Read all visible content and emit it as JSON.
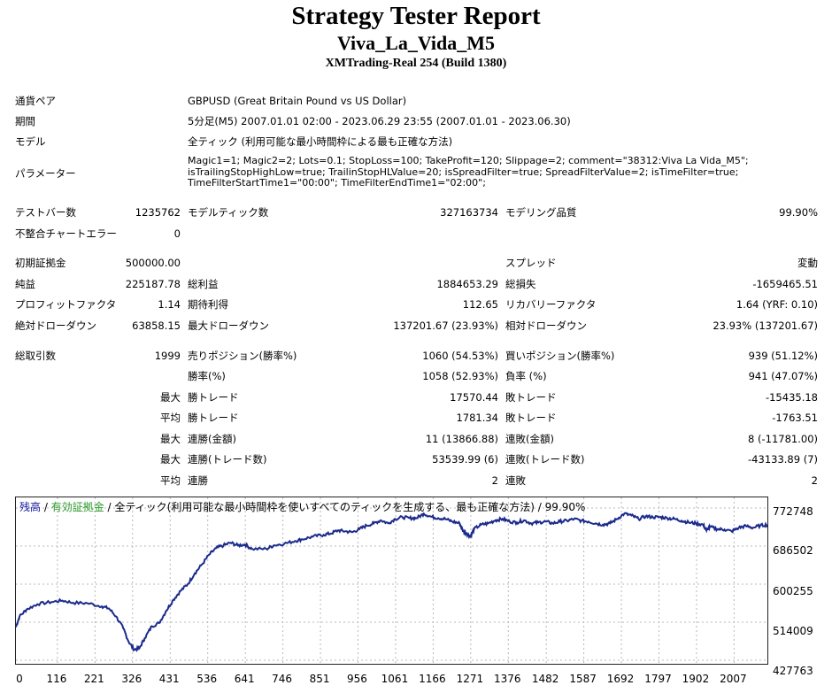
{
  "header": {
    "title": "Strategy Tester Report",
    "subtitle": "Viva_La_Vida_M5",
    "build": "XMTrading-Real 254 (Build 1380)"
  },
  "info": {
    "symbol_label": "通貨ペア",
    "symbol_value": "GBPUSD (Great Britain Pound vs US Dollar)",
    "period_label": "期間",
    "period_value": "5分足(M5) 2007.01.01 02:00 - 2023.06.29 23:55 (2007.01.01 - 2023.06.30)",
    "model_label": "モデル",
    "model_value": "全ティック (利用可能な最小時間枠による最も正確な方法)",
    "params_label": "パラメーター",
    "params_lines": [
      "Magic1=1; Magic2=2; Lots=0.1; StopLoss=100; TakeProfit=120; Slippage=2; comment=\"38312:Viva La Vida_M5\";",
      "isTrailingStopHighLow=true; TrailinStopHLValue=20; isSpreadFilter=true; SpreadFilterValue=2; isTimeFilter=true;",
      "TimeFilterStartTime1=\"00:00\"; TimeFilterEndTime1=\"02:00\";"
    ]
  },
  "stats": {
    "bars_label": "テストバー数",
    "bars_value": "1235762",
    "ticks_label": "モデルティック数",
    "ticks_value": "327163734",
    "quality_label": "モデリング品質",
    "quality_value": "99.90%",
    "errors_label": "不整合チャートエラー",
    "errors_value": "0",
    "deposit_label": "初期証拠金",
    "deposit_value": "500000.00",
    "spread_label": "スプレッド",
    "spread_value": "変動",
    "net_label": "純益",
    "net_value": "225187.78",
    "gross_profit_label": "総利益",
    "gross_profit_value": "1884653.29",
    "gross_loss_label": "総損失",
    "gross_loss_value": "-1659465.51",
    "pf_label": "プロフィットファクタ",
    "pf_value": "1.14",
    "payoff_label": "期待利得",
    "payoff_value": "112.65",
    "recovery_label": "リカバリーファクタ",
    "recovery_value": "1.64 (YRF: 0.10)",
    "abs_dd_label": "絶対ドローダウン",
    "abs_dd_value": "63858.15",
    "max_dd_label": "最大ドローダウン",
    "max_dd_value": "137201.67 (23.93%)",
    "rel_dd_label": "相対ドローダウン",
    "rel_dd_value": "23.93% (137201.67)",
    "trades_label": "総取引数",
    "trades_value": "1999",
    "short_label": "売りポジション(勝率%)",
    "short_value": "1060 (54.53%)",
    "long_label": "買いポジション(勝率%)",
    "long_value": "939 (51.12%)",
    "win_label": "勝率(%)",
    "win_value": "1058 (52.93%)",
    "loss_label": "負率 (%)",
    "loss_value": "941 (47.07%)",
    "rows": [
      {
        "q": "最大",
        "a_label": "勝トレード",
        "a_value": "17570.44",
        "b_label": "敗トレード",
        "b_value": "-15435.18"
      },
      {
        "q": "平均",
        "a_label": "勝トレード",
        "a_value": "1781.34",
        "b_label": "敗トレード",
        "b_value": "-1763.51"
      },
      {
        "q": "最大",
        "a_label": "連勝(金額)",
        "a_value": "11 (13866.88)",
        "b_label": "連敗(金額)",
        "b_value": "8 (-11781.00)"
      },
      {
        "q": "最大",
        "a_label": "連勝(トレード数)",
        "a_value": "53539.99 (6)",
        "b_label": "連敗(トレード数)",
        "b_value": "-43133.89 (7)"
      },
      {
        "q": "平均",
        "a_label": "連勝",
        "a_value": "2",
        "b_label": "連敗",
        "b_value": "2"
      }
    ]
  },
  "chart_legend": {
    "balance": "残高",
    "sep1": " / ",
    "equity": "有効証拠金",
    "rest": " / 全ティック(利用可能な最小時間枠を使いすべてのティックを生成する、最も正確な方法) / 99.90%"
  },
  "colors": {
    "balance": "#1b2a8c",
    "legend_balance": "#1515a0",
    "legend_equity": "#2a9a2a",
    "grid": "#b8b8b8"
  },
  "chart_data": {
    "type": "line",
    "ylim": [
      427763,
      772748
    ],
    "xlim": [
      0,
      2100
    ],
    "yticks": [
      "772748",
      "686502",
      "600255",
      "514009",
      "427763"
    ],
    "xticks": [
      "0",
      "116",
      "221",
      "326",
      "431",
      "536",
      "641",
      "746",
      "851",
      "956",
      "1061",
      "1166",
      "1271",
      "1376",
      "1482",
      "1587",
      "1692",
      "1797",
      "1902",
      "2007"
    ],
    "series": [
      {
        "x": [
          0,
          10,
          30,
          60,
          100,
          130,
          160,
          200,
          240,
          260,
          280,
          300,
          315,
          330,
          345,
          360,
          380,
          400,
          420,
          440,
          460,
          480,
          500,
          520,
          540,
          560,
          580,
          600,
          620,
          640,
          660,
          700,
          720,
          750,
          780,
          800,
          830,
          860,
          880,
          900,
          920,
          940,
          960,
          980,
          1000,
          1020,
          1040,
          1060,
          1080,
          1100,
          1120,
          1140,
          1160,
          1180,
          1200,
          1220,
          1240,
          1250,
          1260,
          1270,
          1280,
          1300,
          1320,
          1340,
          1360,
          1380,
          1400,
          1420,
          1440,
          1460,
          1480,
          1500,
          1520,
          1540,
          1560,
          1580,
          1600,
          1620,
          1640,
          1660,
          1680,
          1700,
          1720,
          1740,
          1760,
          1780,
          1800,
          1820,
          1840,
          1860,
          1880,
          1900,
          1920,
          1930,
          1940,
          1960,
          1980,
          2000,
          2020,
          2040,
          2060,
          2080,
          2100
        ],
        "values": [
          503000,
          527000,
          543000,
          555000,
          560000,
          563000,
          558000,
          557000,
          550000,
          545000,
          527000,
          500000,
          470000,
          452000,
          455000,
          478000,
          505000,
          512000,
          540000,
          565000,
          585000,
          600000,
          625000,
          645000,
          667000,
          682000,
          688000,
          694000,
          688000,
          690000,
          680000,
          680000,
          688000,
          692000,
          698000,
          702000,
          708000,
          712000,
          715000,
          722000,
          720000,
          718000,
          725000,
          733000,
          738000,
          745000,
          738000,
          748000,
          752000,
          750000,
          750000,
          760000,
          753000,
          750000,
          748000,
          742000,
          738000,
          720000,
          715000,
          708000,
          725000,
          735000,
          738000,
          745000,
          748000,
          742000,
          740000,
          745000,
          738000,
          740000,
          742000,
          738000,
          742000,
          744000,
          748000,
          744000,
          742000,
          738000,
          735000,
          738000,
          748000,
          760000,
          756000,
          748000,
          754000,
          752000,
          752000,
          750000,
          748000,
          744000,
          740000,
          738000,
          735000,
          722000,
          730000,
          725000,
          724000,
          720000,
          728000,
          732000,
          728000,
          733000,
          735000
        ]
      }
    ]
  }
}
